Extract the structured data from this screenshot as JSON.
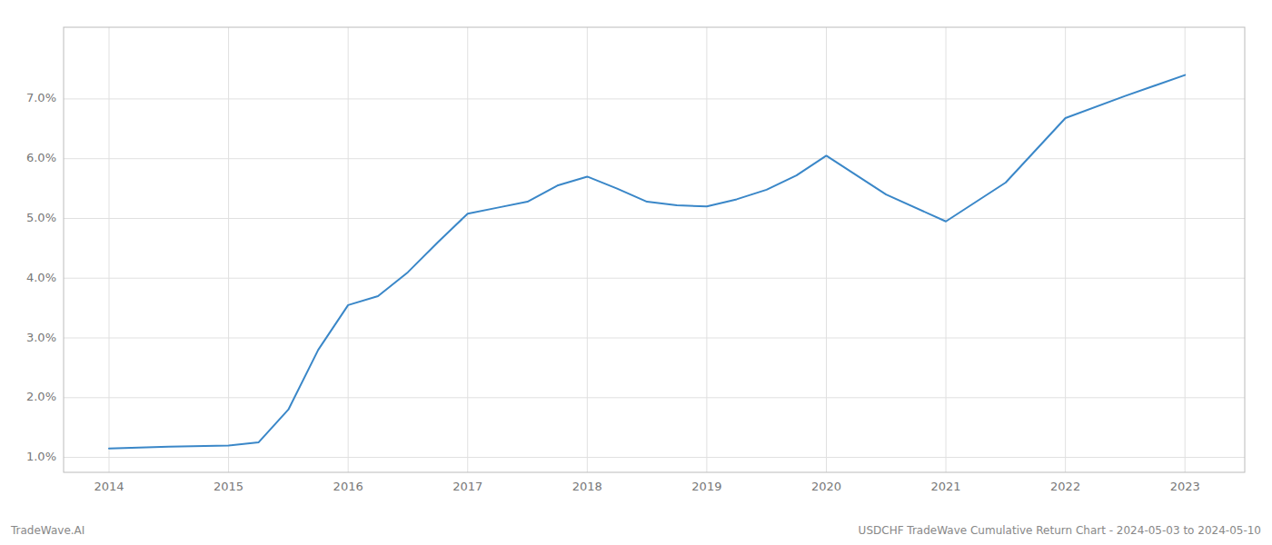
{
  "chart_data": {
    "type": "line",
    "x": [
      2014.0,
      2014.5,
      2015.0,
      2015.25,
      2015.5,
      2015.75,
      2016.0,
      2016.25,
      2016.5,
      2016.75,
      2017.0,
      2017.25,
      2017.5,
      2017.75,
      2018.0,
      2018.25,
      2018.5,
      2018.75,
      2019.0,
      2019.25,
      2019.5,
      2019.75,
      2020.0,
      2020.5,
      2021.0,
      2021.5,
      2022.0,
      2022.5,
      2023.0
    ],
    "values": [
      1.15,
      1.18,
      1.2,
      1.25,
      1.8,
      2.8,
      3.55,
      3.7,
      4.1,
      4.6,
      5.08,
      5.18,
      5.28,
      5.55,
      5.7,
      5.5,
      5.28,
      5.22,
      5.2,
      5.32,
      5.48,
      5.72,
      6.05,
      5.4,
      4.95,
      5.6,
      6.68,
      7.05,
      7.4
    ],
    "color": "#3a87c8",
    "xlim": [
      2013.62,
      2023.5
    ],
    "ylim": [
      0.75,
      8.2
    ],
    "xticks": [
      2014,
      2015,
      2016,
      2017,
      2018,
      2019,
      2020,
      2021,
      2022,
      2023
    ],
    "yticks": [
      {
        "value": 1.0,
        "label": "1.0%"
      },
      {
        "value": 2.0,
        "label": "2.0%"
      },
      {
        "value": 3.0,
        "label": "3.0%"
      },
      {
        "value": 4.0,
        "label": "4.0%"
      },
      {
        "value": 5.0,
        "label": "5.0%"
      },
      {
        "value": 6.0,
        "label": "6.0%"
      },
      {
        "value": 7.0,
        "label": "7.0%"
      }
    ],
    "grid": true,
    "annotations": [
      "TradeWave.AI",
      "USDCHF TradeWave Cumulative Return Chart - 2024-05-03 to 2024-05-10"
    ]
  }
}
